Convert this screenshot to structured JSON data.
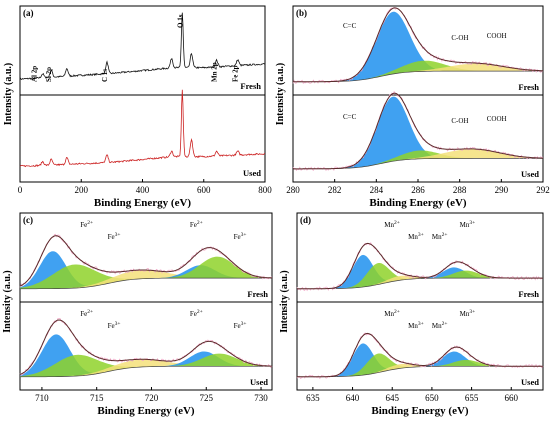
{
  "colors": {
    "raw_black": "#111111",
    "raw_red": "#cc2222",
    "envelope": "#5a2a2a",
    "blue": "#1e90ee",
    "green": "#8fd22a",
    "yellow": "#f4e07a",
    "pink": "#f2a8c8",
    "grey": "#b9b9b9"
  },
  "chart_data": [
    {
      "panel": "(a)",
      "type": "line",
      "xlabel": "Binding Energy (eV)",
      "ylabel": "Intensity (a.u.)",
      "xlim": [
        0,
        800
      ],
      "xticks": [
        "0",
        "200",
        "400",
        "600",
        "800"
      ],
      "subpanels": [
        "Fresh",
        "Used"
      ],
      "peak_labels": [
        {
          "label": "Al 2p",
          "x": 74
        },
        {
          "label": "Si 2p",
          "x": 102
        },
        {
          "label": "C 1s",
          "x": 284
        },
        {
          "label": "O 1s",
          "x": 530
        },
        {
          "label": "Mn 2p",
          "x": 642
        },
        {
          "label": "Fe 2p",
          "x": 711
        }
      ],
      "series": [
        {
          "name": "Fresh",
          "color": "#111111",
          "peaks": [
            [
              74,
              4
            ],
            [
              102,
              7
            ],
            [
              153,
              8
            ],
            [
              284,
              12
            ],
            [
              495,
              10
            ],
            [
              530,
              58
            ],
            [
              560,
              15
            ],
            [
              642,
              7
            ],
            [
              711,
              6
            ]
          ],
          "baseline": [
            [
              0,
              2
            ],
            [
              100,
              4
            ],
            [
              300,
              8
            ],
            [
              500,
              14
            ],
            [
              600,
              14
            ],
            [
              800,
              18
            ]
          ]
        },
        {
          "name": "Used",
          "color": "#cc2222",
          "peaks": [
            [
              74,
              4
            ],
            [
              102,
              6
            ],
            [
              153,
              7
            ],
            [
              284,
              8
            ],
            [
              495,
              6
            ],
            [
              530,
              70
            ],
            [
              560,
              18
            ],
            [
              642,
              5
            ],
            [
              711,
              4
            ]
          ],
          "baseline": [
            [
              0,
              2
            ],
            [
              100,
              3
            ],
            [
              300,
              6
            ],
            [
              500,
              12
            ],
            [
              600,
              12
            ],
            [
              800,
              15
            ]
          ]
        }
      ]
    },
    {
      "panel": "(b)",
      "type": "area",
      "xlabel": "Binding Energy (eV)",
      "xlim": [
        280,
        292
      ],
      "xticks": [
        "280",
        "282",
        "284",
        "286",
        "288",
        "290",
        "292"
      ],
      "subpanels": [
        {
          "condition": "Fresh",
          "labels": [
            {
              "text": "C=C",
              "x": 283.7
            },
            {
              "text": "C-OH",
              "x": 287.6
            },
            {
              "text": "COOH",
              "x": 289.3
            }
          ],
          "components": [
            {
              "name": "C=C",
              "color": "blue",
              "center": 284.8,
              "width": 0.8,
              "height": 58
            },
            {
              "name": "C-OH",
              "color": "green",
              "center": 286.3,
              "width": 1.0,
              "height": 10
            },
            {
              "name": "COOH",
              "color": "yellow",
              "center": 288.8,
              "width": 1.3,
              "height": 7
            }
          ]
        },
        {
          "condition": "Used",
          "labels": [
            {
              "text": "C=C",
              "x": 283.7
            },
            {
              "text": "C-OH",
              "x": 287.6
            },
            {
              "text": "COOH",
              "x": 289.3
            }
          ],
          "components": [
            {
              "name": "C=C",
              "color": "blue",
              "center": 284.8,
              "width": 0.75,
              "height": 62
            },
            {
              "name": "C-OH",
              "color": "green",
              "center": 286.1,
              "width": 0.9,
              "height": 8
            },
            {
              "name": "COOH",
              "color": "yellow",
              "center": 288.6,
              "width": 1.3,
              "height": 9
            }
          ]
        }
      ]
    },
    {
      "panel": "(c)",
      "type": "area",
      "xlabel": "Binding Energy (eV)",
      "xlim": [
        708,
        731
      ],
      "xticks": [
        "710",
        "715",
        "720",
        "725",
        "730"
      ],
      "subpanels": [
        {
          "condition": "Fresh",
          "labels": [
            {
              "text": "Fe2+",
              "x": 713.5
            },
            {
              "text": "Fe3+",
              "x": 716.0
            },
            {
              "text": "Fe2+",
              "x": 723.5
            },
            {
              "text": "Fe3+",
              "x": 727.5
            }
          ],
          "components": [
            {
              "name": "Fe2+",
              "color": "blue",
              "center": 711.0,
              "width": 1.2,
              "height": 35
            },
            {
              "name": "Fe3+",
              "color": "green",
              "center": 713.0,
              "width": 2.0,
              "height": 22
            },
            {
              "name": "satellite",
              "color": "yellow",
              "center": 719.0,
              "width": 2.5,
              "height": 8
            },
            {
              "name": "Fe2+",
              "color": "blue",
              "center": 724.5,
              "width": 1.3,
              "height": 12
            },
            {
              "name": "Fe3+",
              "color": "green",
              "center": 726.0,
              "width": 1.6,
              "height": 20
            }
          ]
        },
        {
          "condition": "Used",
          "labels": [
            {
              "text": "Fe2+",
              "x": 713.5
            },
            {
              "text": "Fe3+",
              "x": 716.0
            },
            {
              "text": "Fe2+",
              "x": 723.5
            },
            {
              "text": "Fe3+",
              "x": 727.5
            }
          ],
          "components": [
            {
              "name": "Fe2+",
              "color": "blue",
              "center": 711.3,
              "width": 1.3,
              "height": 40
            },
            {
              "name": "Fe3+",
              "color": "green",
              "center": 713.2,
              "width": 2.0,
              "height": 20
            },
            {
              "name": "satellite",
              "color": "yellow",
              "center": 719.0,
              "width": 2.5,
              "height": 7
            },
            {
              "name": "Fe2+",
              "color": "blue",
              "center": 724.8,
              "width": 1.3,
              "height": 14
            },
            {
              "name": "Fe3+",
              "color": "green",
              "center": 726.2,
              "width": 1.6,
              "height": 12
            }
          ]
        }
      ]
    },
    {
      "panel": "(d)",
      "type": "area",
      "xlabel": "Binding Energy (eV)",
      "xlim": [
        633,
        664
      ],
      "xticks": [
        "635",
        "640",
        "645",
        "650",
        "655",
        "660"
      ],
      "subpanels": [
        {
          "condition": "Fresh",
          "labels": [
            {
              "text": "Mn2+",
              "x": 644.0
            },
            {
              "text": "Mn3+",
              "x": 647.0
            },
            {
              "text": "Mn3+",
              "x": 653.5
            },
            {
              "text": "Mn2+",
              "x": 650.0
            }
          ],
          "components": [
            {
              "name": "Mn2+",
              "color": "blue",
              "center": 641.3,
              "width": 1.3,
              "height": 30
            },
            {
              "name": "Mn3+",
              "color": "green",
              "center": 643.2,
              "width": 1.4,
              "height": 20
            },
            {
              "name": "satellite",
              "color": "yellow",
              "center": 646.0,
              "width": 1.6,
              "height": 4
            },
            {
              "name": "Mn2+",
              "color": "blue",
              "center": 652.8,
              "width": 1.4,
              "height": 10
            },
            {
              "name": "Mn3+",
              "color": "green",
              "center": 654.3,
              "width": 1.6,
              "height": 7
            }
          ]
        },
        {
          "condition": "Used",
          "labels": [
            {
              "text": "Mn2+",
              "x": 644.0
            },
            {
              "text": "Mn3+",
              "x": 647.0
            },
            {
              "text": "Mn3+",
              "x": 653.5
            },
            {
              "text": "Mn2+",
              "x": 650.0
            }
          ],
          "components": [
            {
              "name": "Mn2+",
              "color": "blue",
              "center": 641.3,
              "width": 1.3,
              "height": 30
            },
            {
              "name": "Mn3+",
              "color": "green",
              "center": 643.2,
              "width": 1.4,
              "height": 18
            },
            {
              "name": "satellite",
              "color": "yellow",
              "center": 646.0,
              "width": 1.6,
              "height": 4
            },
            {
              "name": "Mn2+",
              "color": "blue",
              "center": 652.8,
              "width": 1.4,
              "height": 14
            },
            {
              "name": "Mn3+",
              "color": "green",
              "center": 654.3,
              "width": 1.6,
              "height": 6
            }
          ]
        }
      ]
    }
  ]
}
